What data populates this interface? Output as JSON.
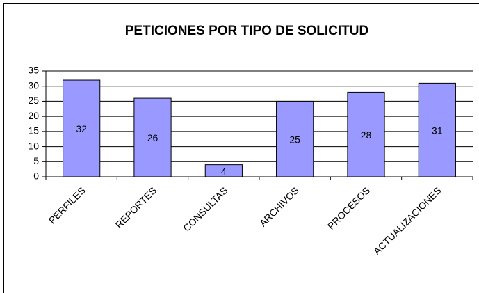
{
  "chart_data": {
    "type": "bar",
    "title": "PETICIONES POR TIPO DE SOLICITUD",
    "categories": [
      "PERFILES",
      "REPORTES",
      "CONSULTAS",
      "ARCHIVOS",
      "PROCESOS",
      "ACTUALIZACIONES"
    ],
    "values": [
      32,
      26,
      4,
      25,
      28,
      31
    ],
    "color": "#9999ff",
    "ylim": [
      0,
      35
    ],
    "yticks": [
      0,
      5,
      10,
      15,
      20,
      25,
      30,
      35
    ],
    "grid": true
  }
}
